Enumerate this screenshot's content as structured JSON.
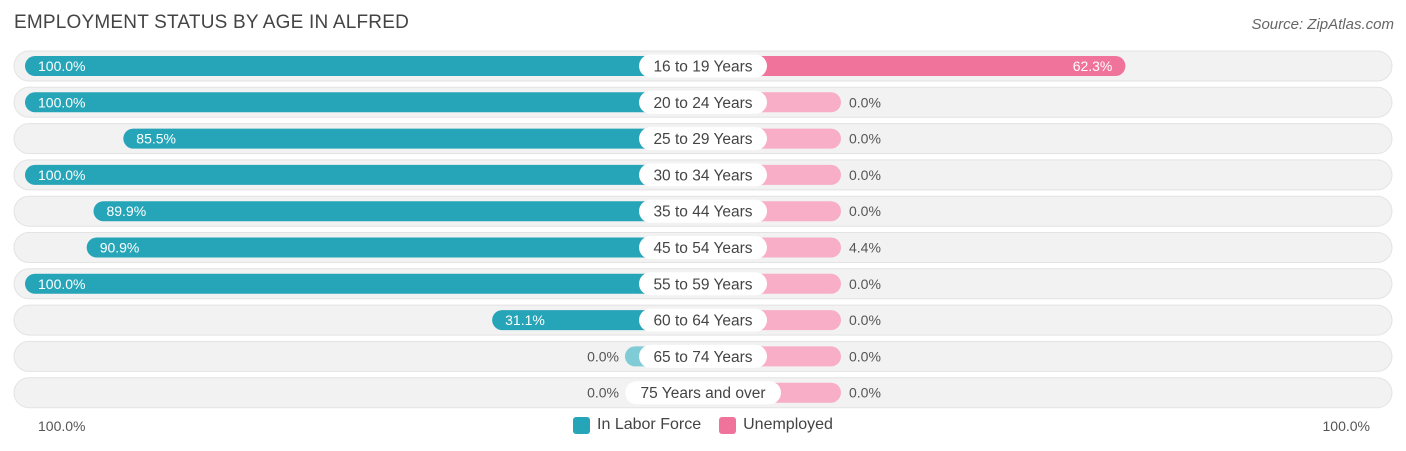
{
  "title": "EMPLOYMENT STATUS BY AGE IN ALFRED",
  "source": "Source: ZipAtlas.com",
  "colors": {
    "labor_strong": "#27a5b8",
    "labor_light": "#7fcbd6",
    "unemp_strong": "#f0739c",
    "unemp_light": "#f7aec6",
    "track": "#f2f2f2"
  },
  "chart_data": {
    "type": "bar",
    "orientation": "horizontal-diverging",
    "categories": [
      "16 to 19 Years",
      "20 to 24 Years",
      "25 to 29 Years",
      "30 to 34 Years",
      "35 to 44 Years",
      "45 to 54 Years",
      "55 to 59 Years",
      "60 to 64 Years",
      "65 to 74 Years",
      "75 Years and over"
    ],
    "series": [
      {
        "name": "In Labor Force",
        "values": [
          100.0,
          100.0,
          85.5,
          100.0,
          89.9,
          90.9,
          100.0,
          31.1,
          0.0,
          0.0
        ],
        "labels": [
          "100.0%",
          "100.0%",
          "85.5%",
          "100.0%",
          "89.9%",
          "90.9%",
          "100.0%",
          "31.1%",
          "0.0%",
          "0.0%"
        ]
      },
      {
        "name": "Unemployed",
        "values": [
          62.3,
          0.0,
          0.0,
          0.0,
          0.0,
          4.4,
          0.0,
          0.0,
          0.0,
          0.0
        ],
        "labels": [
          "62.3%",
          "0.0%",
          "0.0%",
          "0.0%",
          "0.0%",
          "4.4%",
          "0.0%",
          "0.0%",
          "0.0%",
          "0.0%"
        ]
      }
    ],
    "xlim": [
      0,
      100
    ],
    "axis_left_label": "100.0%",
    "axis_right_label": "100.0%",
    "legend_position": "bottom-center"
  }
}
